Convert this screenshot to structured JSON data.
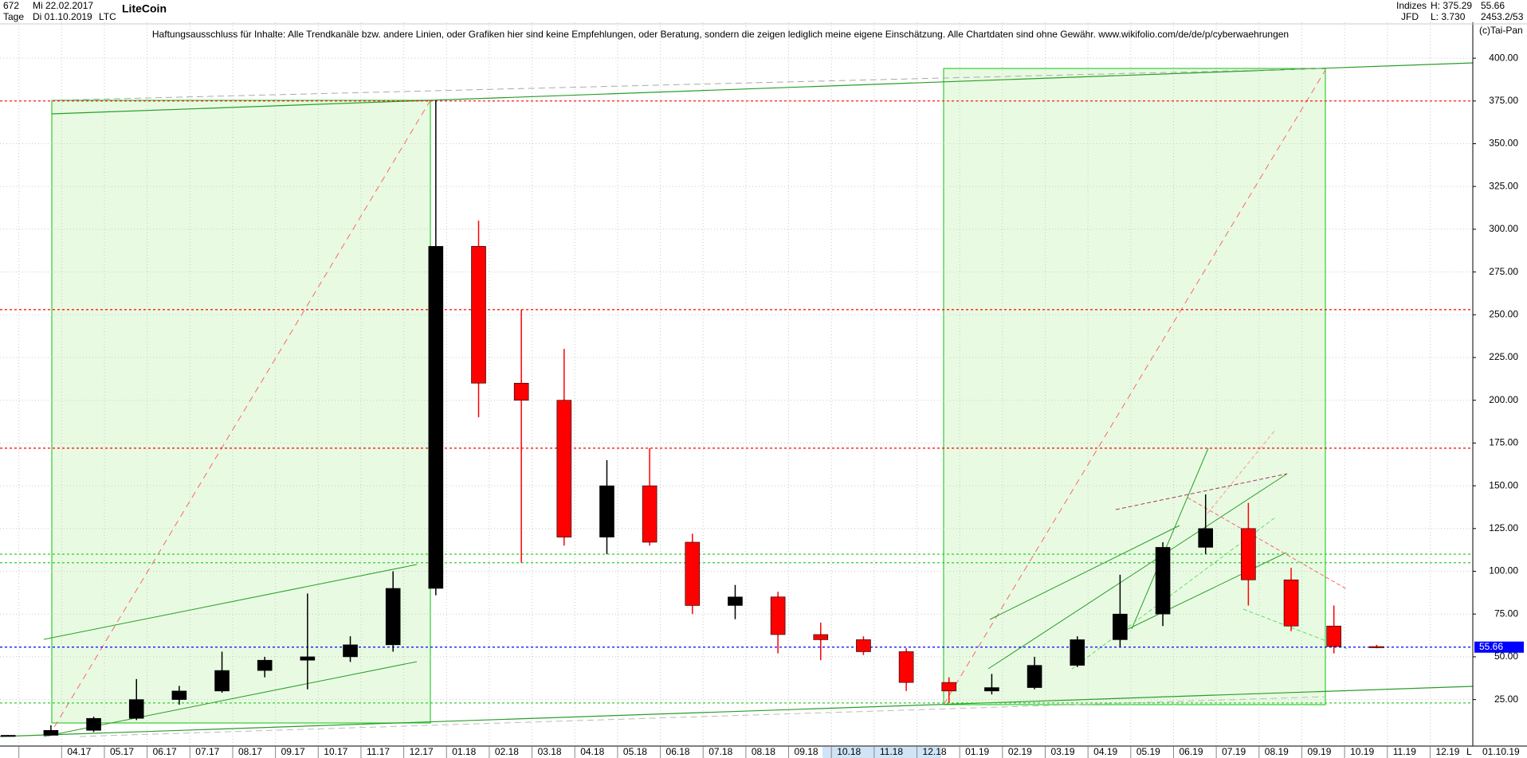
{
  "header": {
    "bars": "672",
    "start_date": "Mi 22.02.2017",
    "period": "Tage",
    "end_date": "Di 01.10.2019",
    "symbol": "LTC",
    "group": "Indizes",
    "broker": "JFD",
    "high": "H: 375.29",
    "low": "L: 3.730",
    "last": "55.66",
    "misc": "2453.2/53",
    "copyright": "(c)Tai-Pan",
    "date_readout": "01.10.19",
    "scale_mode": "L"
  },
  "chart_data": {
    "type": "candlestick",
    "title": "LiteCoin",
    "subtitle": "Haftungsausschluss für Inhalte: Alle Trendkanäle bzw. andere Linien, oder Grafiken hier sind keine Empfehlungen, oder Beratung, sondern die zeigen lediglich meine eigene Einschätzung. Alle Chartdaten sind ohne Gewähr.  www.wikifolio.com/de/de/p/cyberwaehrungen",
    "categories": [
      null,
      null,
      "04.17",
      "05.17",
      "06.17",
      "07.17",
      "08.17",
      "09.17",
      "10.17",
      "11.17",
      "12.17",
      "01.18",
      "02.18",
      "03.18",
      "04.18",
      "05.18",
      "06.18",
      "07.18",
      "08.18",
      "09.18",
      "10.18",
      "11.18",
      "12.18",
      "01.19",
      "02.19",
      "03.19",
      "04.19",
      "05.19",
      "06.19",
      "07.19",
      "08.19",
      "09.19",
      "10.19",
      "11.19",
      "12.19"
    ],
    "open": [
      3.8,
      4.1,
      7,
      14,
      25,
      30,
      42,
      48,
      50,
      57,
      90,
      290,
      210,
      200,
      120,
      150,
      117,
      80,
      85,
      63,
      60,
      53,
      35,
      30,
      32,
      45,
      60,
      75,
      114,
      125,
      95,
      68,
      56,
      null,
      null
    ],
    "high": [
      4.3,
      10,
      15,
      37,
      33,
      53,
      50,
      87,
      62,
      100,
      375.29,
      305,
      253,
      230,
      165,
      172,
      122,
      92,
      88,
      70,
      62,
      55,
      38,
      40,
      50,
      62,
      98,
      117,
      145,
      140,
      102,
      80,
      57,
      null,
      null
    ],
    "low": [
      3.73,
      3.9,
      6,
      13,
      22,
      29,
      38,
      31,
      47,
      53,
      86,
      190,
      105,
      115,
      110,
      115,
      75,
      72,
      52,
      48,
      51,
      30,
      23,
      28,
      31,
      44,
      56,
      68,
      110,
      80,
      65,
      52,
      55,
      null,
      null
    ],
    "close": [
      4.1,
      7,
      14,
      25,
      30,
      42,
      48,
      50,
      57,
      90,
      290,
      210,
      200,
      120,
      150,
      117,
      80,
      85,
      63,
      60,
      53,
      35,
      30,
      32,
      45,
      60,
      75,
      114,
      125,
      95,
      68,
      56,
      55.66,
      null,
      null
    ],
    "up_color": "#000000",
    "down_color": "#ff0000",
    "hlines": [
      {
        "value": 375,
        "color": "#ff0000"
      },
      {
        "value": 253,
        "color": "#ff0000"
      },
      {
        "value": 172,
        "color": "#ff0000"
      },
      {
        "value": 110,
        "color": "#33cc33"
      },
      {
        "value": 105,
        "color": "#33cc33"
      },
      {
        "value": 23,
        "color": "#33cc33"
      },
      {
        "value": 55.66,
        "label": "55.66",
        "color": "#0000ff"
      }
    ],
    "ylim": [
      3.4,
      421
    ],
    "yticks": [
      {
        "value": 25,
        "label": "25.00"
      },
      {
        "value": 50,
        "label": "50.00"
      },
      {
        "value": 75,
        "label": "75.00"
      },
      {
        "value": 100,
        "label": "100.00"
      },
      {
        "value": 125,
        "label": "125.00"
      },
      {
        "value": 150,
        "label": "150.00"
      },
      {
        "value": 175,
        "label": "175.00"
      },
      {
        "value": 200,
        "label": "200.00"
      },
      {
        "value": 225,
        "label": "225.00"
      },
      {
        "value": 250,
        "label": "250.00"
      },
      {
        "value": 275,
        "label": "275.00"
      },
      {
        "value": 300,
        "label": "300.00"
      },
      {
        "value": 325,
        "label": "325.00"
      },
      {
        "value": 350,
        "label": "350.00"
      },
      {
        "value": 375,
        "label": "375.00"
      },
      {
        "value": 400,
        "label": "400.00"
      }
    ],
    "grid": true
  }
}
